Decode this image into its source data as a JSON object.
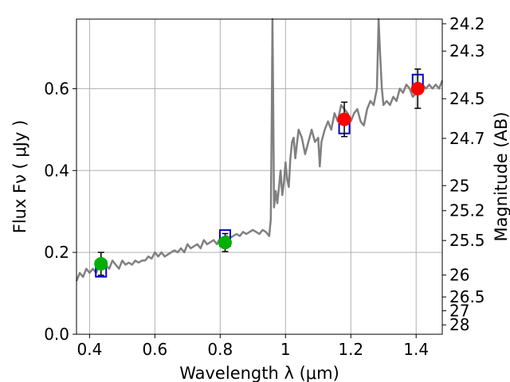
{
  "chart_data": {
    "type": "scatter",
    "xlabel": "Wavelength  λ (μm)",
    "ylabel": "Flux  Fν  ( μJy )",
    "y2label": "Magnitude (AB)",
    "xlim": [
      0.36,
      1.48
    ],
    "ylim": [
      0.0,
      0.77
    ],
    "grid": true,
    "x_ticks": [
      {
        "value": 0.4,
        "label": "0.4"
      },
      {
        "value": 0.6,
        "label": "0.6"
      },
      {
        "value": 0.8,
        "label": "0.8"
      },
      {
        "value": 1.0,
        "label": "1"
      },
      {
        "value": 1.2,
        "label": "1.2"
      },
      {
        "value": 1.4,
        "label": "1.4"
      }
    ],
    "y_ticks": [
      {
        "value": 0.0,
        "label": "0.0"
      },
      {
        "value": 0.2,
        "label": "0.2"
      },
      {
        "value": 0.4,
        "label": "0.4"
      },
      {
        "value": 0.6,
        "label": "0.6"
      }
    ],
    "mag_ticks": [
      {
        "mag": 24.2,
        "label": "24.2"
      },
      {
        "mag": 24.3,
        "label": "24.3"
      },
      {
        "mag": 24.5,
        "label": "24.5"
      },
      {
        "mag": 24.7,
        "label": "24.7"
      },
      {
        "mag": 25.0,
        "label": "25"
      },
      {
        "mag": 25.2,
        "label": "25.2"
      },
      {
        "mag": 25.5,
        "label": "25.5"
      },
      {
        "mag": 26.0,
        "label": "26"
      },
      {
        "mag": 26.5,
        "label": "26.5"
      },
      {
        "mag": 27.0,
        "label": "27"
      },
      {
        "mag": 28.0,
        "label": "28"
      }
    ],
    "spectrum": {
      "color": "#808080",
      "x": [
        0.36,
        0.37,
        0.38,
        0.39,
        0.4,
        0.41,
        0.42,
        0.43,
        0.44,
        0.45,
        0.46,
        0.47,
        0.48,
        0.49,
        0.5,
        0.51,
        0.52,
        0.53,
        0.54,
        0.55,
        0.56,
        0.57,
        0.58,
        0.59,
        0.6,
        0.61,
        0.62,
        0.63,
        0.64,
        0.65,
        0.66,
        0.67,
        0.68,
        0.69,
        0.7,
        0.71,
        0.72,
        0.73,
        0.74,
        0.75,
        0.76,
        0.77,
        0.78,
        0.79,
        0.8,
        0.81,
        0.82,
        0.83,
        0.84,
        0.85,
        0.86,
        0.87,
        0.88,
        0.89,
        0.9,
        0.91,
        0.92,
        0.93,
        0.94,
        0.95,
        0.955,
        0.958,
        0.96,
        0.962,
        0.965,
        0.97,
        0.975,
        0.98,
        0.985,
        0.99,
        0.995,
        1.0,
        1.005,
        1.01,
        1.015,
        1.02,
        1.025,
        1.03,
        1.04,
        1.05,
        1.06,
        1.07,
        1.08,
        1.09,
        1.1,
        1.105,
        1.11,
        1.12,
        1.13,
        1.14,
        1.15,
        1.16,
        1.17,
        1.18,
        1.19,
        1.2,
        1.21,
        1.22,
        1.23,
        1.24,
        1.25,
        1.26,
        1.27,
        1.28,
        1.285,
        1.29,
        1.295,
        1.3,
        1.31,
        1.32,
        1.33,
        1.34,
        1.35,
        1.36,
        1.37,
        1.38,
        1.39,
        1.4,
        1.41,
        1.42,
        1.43,
        1.44,
        1.45,
        1.46,
        1.47,
        1.48
      ],
      "y": [
        0.13,
        0.15,
        0.14,
        0.16,
        0.15,
        0.16,
        0.15,
        0.17,
        0.16,
        0.17,
        0.16,
        0.18,
        0.17,
        0.16,
        0.18,
        0.17,
        0.175,
        0.17,
        0.18,
        0.175,
        0.18,
        0.18,
        0.19,
        0.185,
        0.2,
        0.19,
        0.2,
        0.19,
        0.195,
        0.2,
        0.205,
        0.2,
        0.21,
        0.2,
        0.22,
        0.21,
        0.215,
        0.22,
        0.21,
        0.23,
        0.22,
        0.225,
        0.23,
        0.22,
        0.235,
        0.23,
        0.24,
        0.235,
        0.24,
        0.245,
        0.24,
        0.25,
        0.245,
        0.25,
        0.255,
        0.25,
        0.245,
        0.255,
        0.25,
        0.24,
        0.28,
        0.55,
        0.77,
        0.6,
        0.31,
        0.35,
        0.32,
        0.36,
        0.4,
        0.34,
        0.37,
        0.42,
        0.38,
        0.36,
        0.43,
        0.47,
        0.48,
        0.43,
        0.5,
        0.48,
        0.44,
        0.47,
        0.5,
        0.47,
        0.48,
        0.41,
        0.47,
        0.5,
        0.52,
        0.5,
        0.54,
        0.52,
        0.56,
        0.55,
        0.54,
        0.52,
        0.54,
        0.55,
        0.52,
        0.51,
        0.55,
        0.57,
        0.56,
        0.6,
        0.77,
        0.68,
        0.6,
        0.56,
        0.57,
        0.56,
        0.58,
        0.57,
        0.6,
        0.59,
        0.61,
        0.6,
        0.58,
        0.59,
        0.6,
        0.61,
        0.6,
        0.61,
        0.6,
        0.61,
        0.6,
        0.62
      ]
    },
    "model_boxes": {
      "color": "#0000cc",
      "points": [
        {
          "x": 0.435,
          "y": 0.16
        },
        {
          "x": 0.815,
          "y": 0.235
        },
        {
          "x": 1.18,
          "y": 0.51
        },
        {
          "x": 1.405,
          "y": 0.615
        }
      ]
    },
    "observations": [
      {
        "x": 0.435,
        "y": 0.172,
        "err": 0.028,
        "color": "#00b000"
      },
      {
        "x": 0.815,
        "y": 0.224,
        "err": 0.022,
        "color": "#00b000"
      },
      {
        "x": 1.18,
        "y": 0.525,
        "err": 0.042,
        "color": "#ff0000"
      },
      {
        "x": 1.405,
        "y": 0.6,
        "err": 0.048,
        "color": "#ff0000"
      }
    ]
  }
}
